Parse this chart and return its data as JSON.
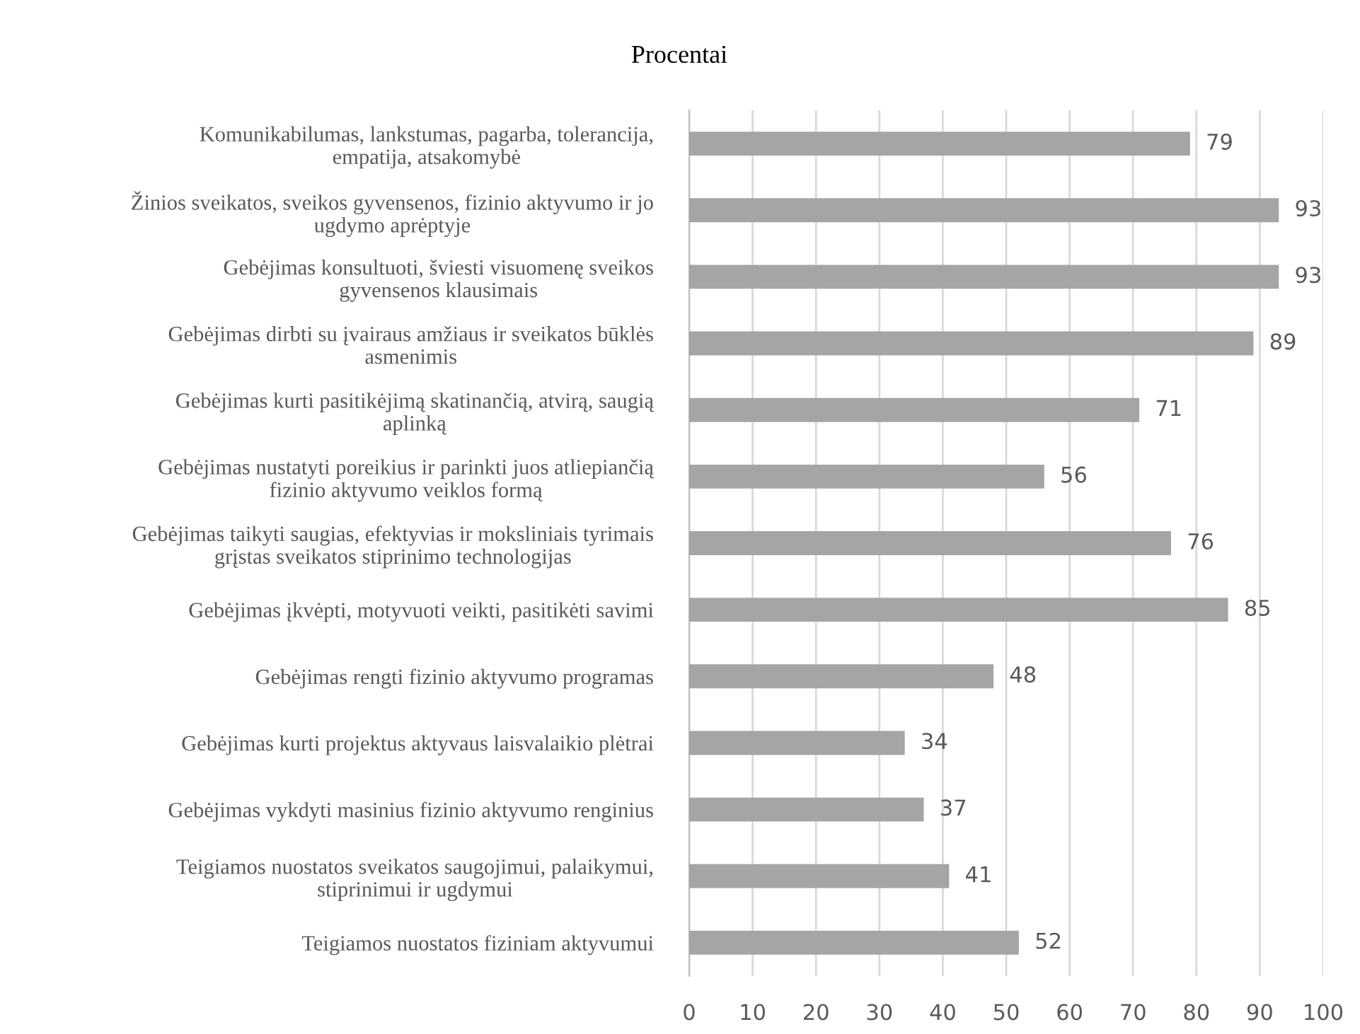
{
  "chart_data": {
    "type": "bar",
    "orientation": "horizontal",
    "title": "Procentai",
    "categories": [
      "Komunikabilumas, lankstumas, pagarba, tolerancija,\nempatija, atsakomybė",
      "Žinios sveikatos, sveikos gyvensenos, fizinio aktyvumo ir jo\nugdymo aprėptyje",
      "Gebėjimas konsultuoti, šviesti visuomenę sveikos\ngyvensenos klausimais",
      "Gebėjimas dirbti su įvairaus amžiaus ir sveikatos būklės\nasmenimis",
      "Gebėjimas kurti pasitikėjimą skatinančią, atvirą, saugią\naplinką",
      "Gebėjimas nustatyti poreikius ir parinkti juos atliepiančią\nfizinio aktyvumo veiklos formą",
      "Gebėjimas taikyti saugias, efektyvias ir moksliniais tyrimais\ngrįstas sveikatos stiprinimo technologijas",
      "Gebėjimas įkvėpti, motyvuoti veikti, pasitikėti savimi",
      "Gebėjimas rengti fizinio aktyvumo programas",
      "Gebėjimas kurti projektus aktyvaus laisvalaikio plėtrai",
      "Gebėjimas vykdyti masinius fizinio aktyvumo renginius",
      "Teigiamos nuostatos sveikatos saugojimui, palaikymui,\nstiprinimui ir ugdymui",
      "Teigiamos nuostatos fiziniam aktyvumui"
    ],
    "values": [
      79,
      93,
      93,
      89,
      71,
      56,
      76,
      85,
      48,
      34,
      37,
      41,
      52
    ],
    "color": "#a5a5a5",
    "xlim": [
      0,
      100
    ],
    "xticks": [
      0,
      10,
      20,
      30,
      40,
      50,
      60,
      70,
      80,
      90,
      100
    ],
    "grid": "x",
    "data_labels": true
  }
}
